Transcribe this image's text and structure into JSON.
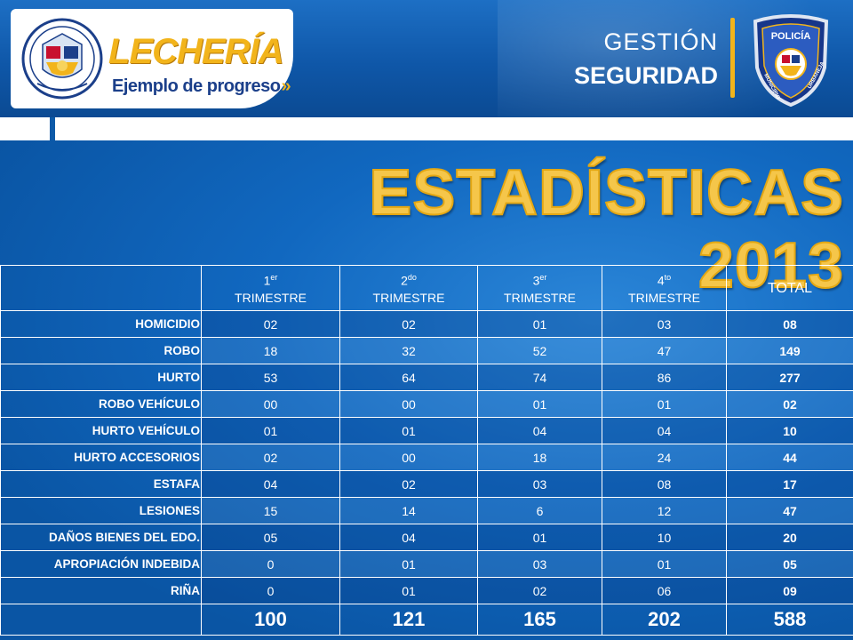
{
  "header": {
    "brand": "LECHERÍA",
    "tagline": "Ejemplo de progreso",
    "tagline_arrows": "»",
    "gestion": "GESTIÓN",
    "seguridad": "SEGURIDAD",
    "badge_top_text": "POLICÍA",
    "badge_left_text": "MUNICIPIO",
    "badge_right_text": "URBANEJA"
  },
  "title": "ESTADÍSTICAS 2013",
  "table": {
    "columns": [
      {
        "num": "1",
        "sup": "er",
        "label": "TRIMESTRE"
      },
      {
        "num": "2",
        "sup": "do",
        "label": "TRIMESTRE"
      },
      {
        "num": "3",
        "sup": "er",
        "label": "TRIMESTRE"
      },
      {
        "num": "4",
        "sup": "to",
        "label": "TRIMESTRE"
      }
    ],
    "total_header": "TOTAL",
    "rows": [
      {
        "label": "HOMICIDIO",
        "q1": "02",
        "q2": "02",
        "q3": "01",
        "q4": "03",
        "total": "08"
      },
      {
        "label": "ROBO",
        "q1": "18",
        "q2": "32",
        "q3": "52",
        "q4": "47",
        "total": "149"
      },
      {
        "label": "HURTO",
        "q1": "53",
        "q2": "64",
        "q3": "74",
        "q4": "86",
        "total": "277"
      },
      {
        "label": "ROBO VEHÍCULO",
        "q1": "00",
        "q2": "00",
        "q3": "01",
        "q4": "01",
        "total": "02"
      },
      {
        "label": "HURTO VEHÍCULO",
        "q1": "01",
        "q2": "01",
        "q3": "04",
        "q4": "04",
        "total": "10"
      },
      {
        "label": "HURTO ACCESORIOS",
        "q1": "02",
        "q2": "00",
        "q3": "18",
        "q4": "24",
        "total": "44"
      },
      {
        "label": "ESTAFA",
        "q1": "04",
        "q2": "02",
        "q3": "03",
        "q4": "08",
        "total": "17"
      },
      {
        "label": "LESIONES",
        "q1": "15",
        "q2": "14",
        "q3": "6",
        "q4": "12",
        "total": "47"
      },
      {
        "label": "DAÑOS BIENES DEL EDO.",
        "q1": "05",
        "q2": "04",
        "q3": "01",
        "q4": "10",
        "total": "20"
      },
      {
        "label": "APROPIACIÓN INDEBIDA",
        "q1": "0",
        "q2": "01",
        "q3": "03",
        "q4": "01",
        "total": "05"
      },
      {
        "label": "RIÑA",
        "q1": "0",
        "q2": "01",
        "q3": "02",
        "q4": "06",
        "total": "09"
      }
    ],
    "totals": {
      "q1": "100",
      "q2": "121",
      "q3": "165",
      "q4": "202",
      "total": "588"
    }
  },
  "colors": {
    "background_blue": "#0a5fb3",
    "title_gold": "#f5c64a",
    "brand_gold": "#f2b41b",
    "tagline_navy": "#1b3f8a"
  }
}
